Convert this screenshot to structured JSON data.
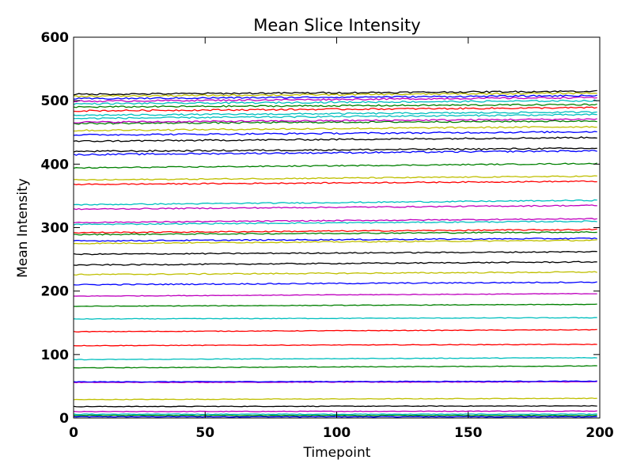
{
  "chart_data": {
    "type": "line",
    "title": "Mean Slice Intensity",
    "xlabel": "Timepoint",
    "ylabel": "Mean Intensity",
    "xlim": [
      0,
      200
    ],
    "ylim": [
      0,
      600
    ],
    "xticks": [
      0,
      50,
      100,
      150,
      200
    ],
    "yticks": [
      0,
      100,
      200,
      300,
      400,
      500,
      600
    ],
    "grid": false,
    "legend": "none",
    "n_timepoints": 200,
    "series": [
      {
        "values": [
          2,
          2
        ],
        "color": "#0000ff"
      },
      {
        "values": [
          4,
          4
        ],
        "color": "#008000"
      },
      {
        "values": [
          6,
          6
        ],
        "color": "#00bfbf"
      },
      {
        "values": [
          10,
          11
        ],
        "color": "#bf00bf"
      },
      {
        "values": [
          18,
          19
        ],
        "color": "#000000"
      },
      {
        "values": [
          29,
          31
        ],
        "color": "#bfbf00"
      },
      {
        "values": [
          56,
          57
        ],
        "color": "#bf00bf"
      },
      {
        "values": [
          57,
          58
        ],
        "color": "#0000ff"
      },
      {
        "values": [
          79,
          82
        ],
        "color": "#008000"
      },
      {
        "values": [
          92,
          95
        ],
        "color": "#00bfbf"
      },
      {
        "values": [
          114,
          116
        ],
        "color": "#ff0000"
      },
      {
        "values": [
          136,
          139
        ],
        "color": "#ff0000"
      },
      {
        "values": [
          156,
          158
        ],
        "color": "#00bfbf"
      },
      {
        "values": [
          176,
          179
        ],
        "color": "#008000"
      },
      {
        "values": [
          192,
          196
        ],
        "color": "#bf00bf"
      },
      {
        "values": [
          210,
          214
        ],
        "color": "#0000ff"
      },
      {
        "values": [
          226,
          230
        ],
        "color": "#bfbf00"
      },
      {
        "values": [
          241,
          246
        ],
        "color": "#000000"
      },
      {
        "values": [
          258,
          262
        ],
        "color": "#000000"
      },
      {
        "values": [
          275,
          280
        ],
        "color": "#bfbf00"
      },
      {
        "values": [
          279,
          283
        ],
        "color": "#0000ff"
      },
      {
        "values": [
          289,
          293
        ],
        "color": "#008000"
      },
      {
        "values": [
          292,
          297
        ],
        "color": "#ff0000"
      },
      {
        "values": [
          305,
          310
        ],
        "color": "#00bfbf"
      },
      {
        "values": [
          308,
          314
        ],
        "color": "#bf00bf"
      },
      {
        "values": [
          329,
          335
        ],
        "color": "#bf00bf"
      },
      {
        "values": [
          336,
          343
        ],
        "color": "#00bfbf"
      },
      {
        "values": [
          368,
          373
        ],
        "color": "#ff0000"
      },
      {
        "values": [
          375,
          381
        ],
        "color": "#bfbf00"
      },
      {
        "values": [
          394,
          401
        ],
        "color": "#008000"
      },
      {
        "values": [
          415,
          421
        ],
        "color": "#0000ff"
      },
      {
        "values": [
          420,
          425
        ],
        "color": "#000000"
      },
      {
        "values": [
          436,
          442
        ],
        "color": "#000000"
      },
      {
        "values": [
          446,
          451
        ],
        "color": "#0000ff"
      },
      {
        "values": [
          453,
          459
        ],
        "color": "#bfbf00"
      },
      {
        "values": [
          464,
          468
        ],
        "color": "#008000"
      },
      {
        "values": [
          466,
          471
        ],
        "color": "#bf00bf"
      },
      {
        "values": [
          472,
          478
        ],
        "color": "#00bfbf"
      },
      {
        "values": [
          477,
          482
        ],
        "color": "#00bfbf"
      },
      {
        "values": [
          484,
          489
        ],
        "color": "#ff0000"
      },
      {
        "values": [
          490,
          494
        ],
        "color": "#008000"
      },
      {
        "values": [
          495,
          500
        ],
        "color": "#00bfbf"
      },
      {
        "values": [
          499,
          505
        ],
        "color": "#bf00bf"
      },
      {
        "values": [
          503,
          508
        ],
        "color": "#0000ff"
      },
      {
        "values": [
          507,
          512
        ],
        "color": "#bfbf00"
      },
      {
        "values": [
          510,
          515
        ],
        "color": "#000000"
      }
    ]
  }
}
